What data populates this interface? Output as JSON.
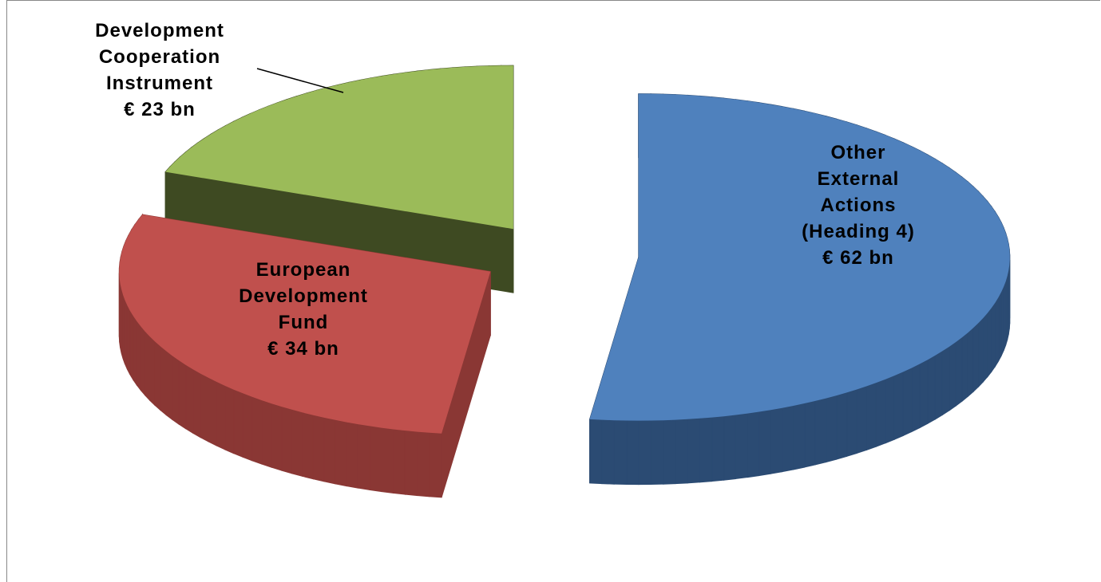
{
  "chart_data": {
    "type": "pie",
    "categories": [
      "Other External Actions (Heading 4)",
      "European Development Fund",
      "Development Cooperation Instrument"
    ],
    "values": [
      62,
      34,
      23
    ],
    "value_labels": [
      "€ 62 bn",
      "€ 34 bn",
      "€ 23 bn"
    ],
    "colors": [
      "#4f81bd",
      "#c0504d",
      "#9bbb59"
    ],
    "side_colors": [
      "#2b4b73",
      "#8a3734",
      "#3e4a22"
    ]
  }
}
